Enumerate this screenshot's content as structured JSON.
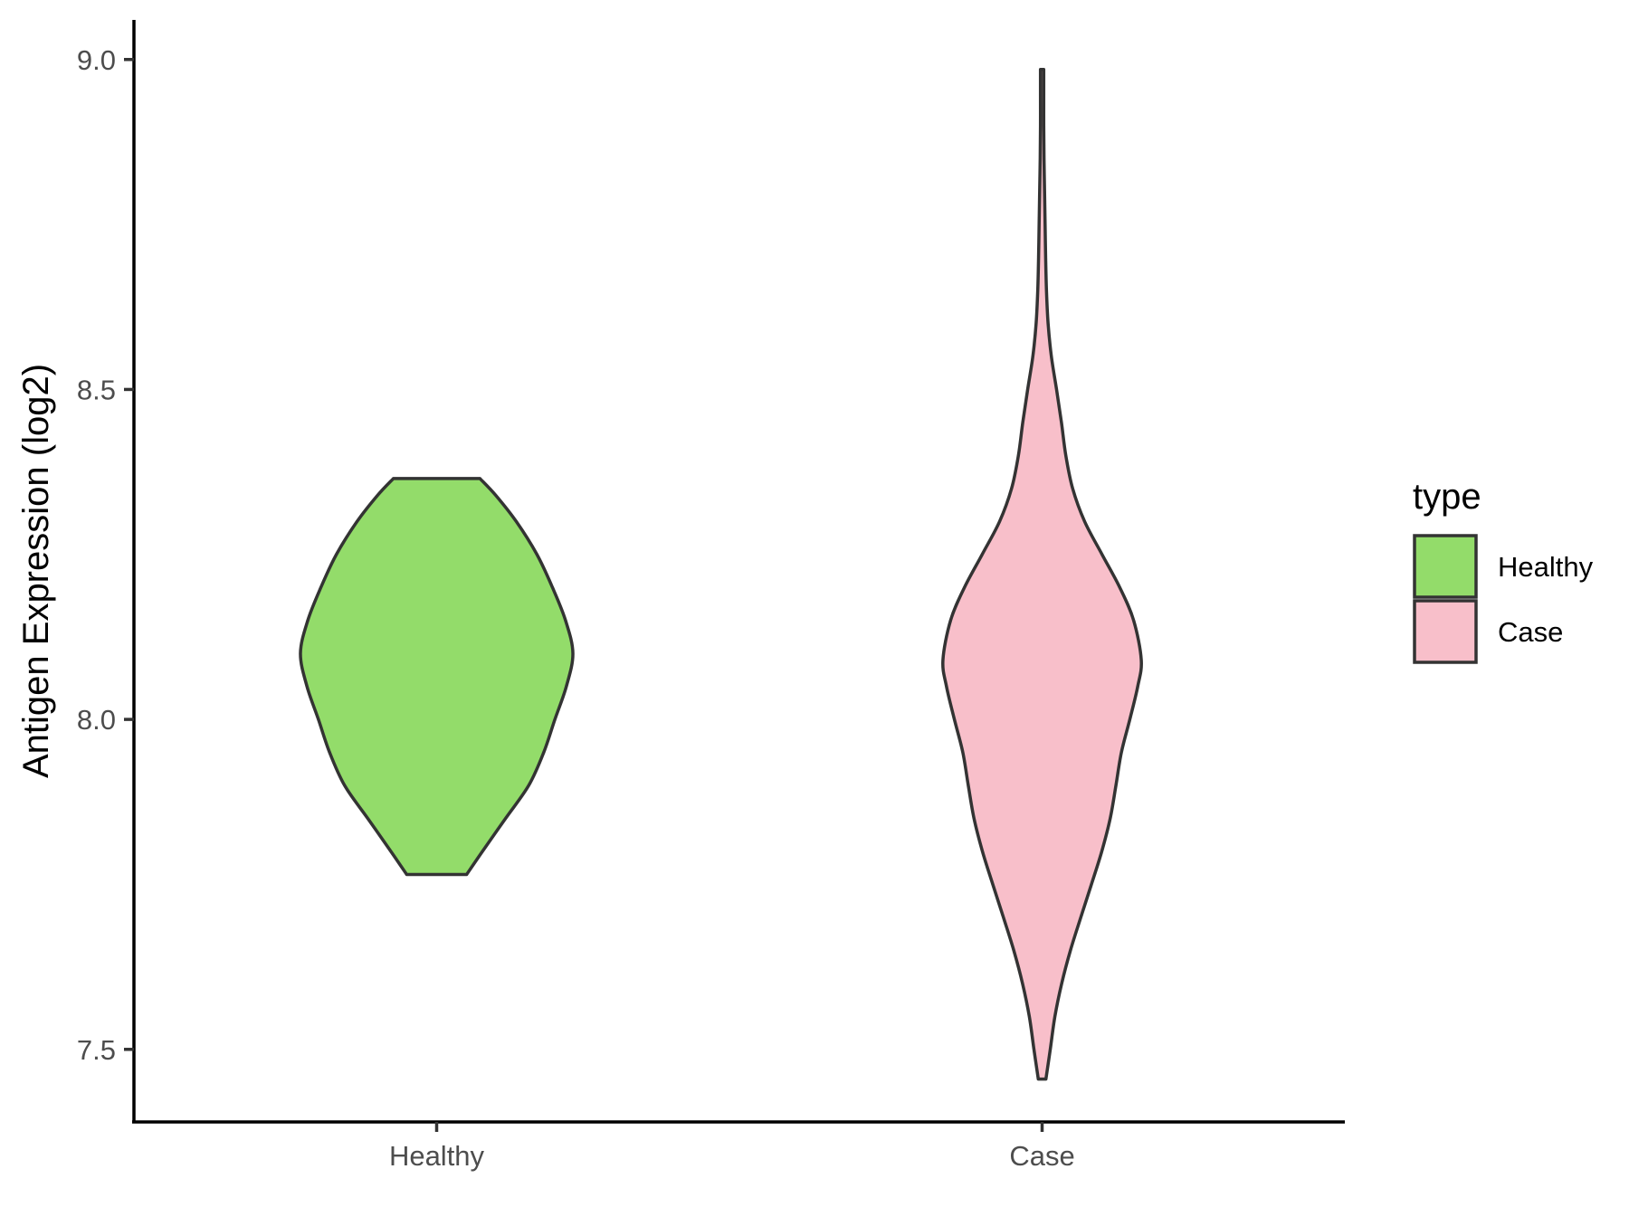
{
  "chart_data": {
    "type": "violin",
    "ylabel": "Antigen Expression (log2)",
    "xlabel": "",
    "ylim": [
      7.39,
      9.06
    ],
    "y_ticks": [
      "7.5",
      "8.0",
      "8.5",
      "9.0"
    ],
    "y_tick_values": [
      7.5,
      8.0,
      8.5,
      9.0
    ],
    "categories": [
      "Healthy",
      "Case"
    ],
    "legend": {
      "title": "type",
      "position": "right",
      "entries": [
        "Healthy",
        "Case"
      ]
    },
    "grid": false,
    "series": [
      {
        "name": "Healthy",
        "color": "#93dc6a",
        "outline": "#333333",
        "min": 7.765,
        "max": 8.365,
        "profile": [
          {
            "y": 7.765,
            "w": 0.11
          },
          {
            "y": 7.8,
            "w": 0.168
          },
          {
            "y": 7.85,
            "w": 0.253
          },
          {
            "y": 7.9,
            "w": 0.338
          },
          {
            "y": 7.95,
            "w": 0.393
          },
          {
            "y": 8.0,
            "w": 0.434
          },
          {
            "y": 8.05,
            "w": 0.476
          },
          {
            "y": 8.1,
            "w": 0.5
          },
          {
            "y": 8.15,
            "w": 0.473
          },
          {
            "y": 8.2,
            "w": 0.425
          },
          {
            "y": 8.25,
            "w": 0.368
          },
          {
            "y": 8.3,
            "w": 0.292
          },
          {
            "y": 8.34,
            "w": 0.216
          },
          {
            "y": 8.365,
            "w": 0.159
          }
        ]
      },
      {
        "name": "Case",
        "color": "#f8bfca",
        "outline": "#333333",
        "min": 7.455,
        "max": 8.985,
        "profile": [
          {
            "y": 7.455,
            "w": 0.014
          },
          {
            "y": 7.5,
            "w": 0.03
          },
          {
            "y": 7.55,
            "w": 0.047
          },
          {
            "y": 7.6,
            "w": 0.072
          },
          {
            "y": 7.65,
            "w": 0.104
          },
          {
            "y": 7.7,
            "w": 0.142
          },
          {
            "y": 7.75,
            "w": 0.181
          },
          {
            "y": 7.8,
            "w": 0.219
          },
          {
            "y": 7.85,
            "w": 0.25
          },
          {
            "y": 7.9,
            "w": 0.271
          },
          {
            "y": 7.95,
            "w": 0.291
          },
          {
            "y": 8.0,
            "w": 0.322
          },
          {
            "y": 8.05,
            "w": 0.351
          },
          {
            "y": 8.09,
            "w": 0.364
          },
          {
            "y": 8.15,
            "w": 0.336
          },
          {
            "y": 8.2,
            "w": 0.285
          },
          {
            "y": 8.25,
            "w": 0.22
          },
          {
            "y": 8.3,
            "w": 0.156
          },
          {
            "y": 8.35,
            "w": 0.112
          },
          {
            "y": 8.4,
            "w": 0.087
          },
          {
            "y": 8.45,
            "w": 0.071
          },
          {
            "y": 8.5,
            "w": 0.053
          },
          {
            "y": 8.55,
            "w": 0.034
          },
          {
            "y": 8.6,
            "w": 0.022
          },
          {
            "y": 8.65,
            "w": 0.016
          },
          {
            "y": 8.7,
            "w": 0.013
          },
          {
            "y": 8.75,
            "w": 0.011
          },
          {
            "y": 8.8,
            "w": 0.009
          },
          {
            "y": 8.85,
            "w": 0.007
          },
          {
            "y": 8.9,
            "w": 0.006
          },
          {
            "y": 8.95,
            "w": 0.006
          },
          {
            "y": 8.985,
            "w": 0.006
          }
        ]
      }
    ]
  }
}
